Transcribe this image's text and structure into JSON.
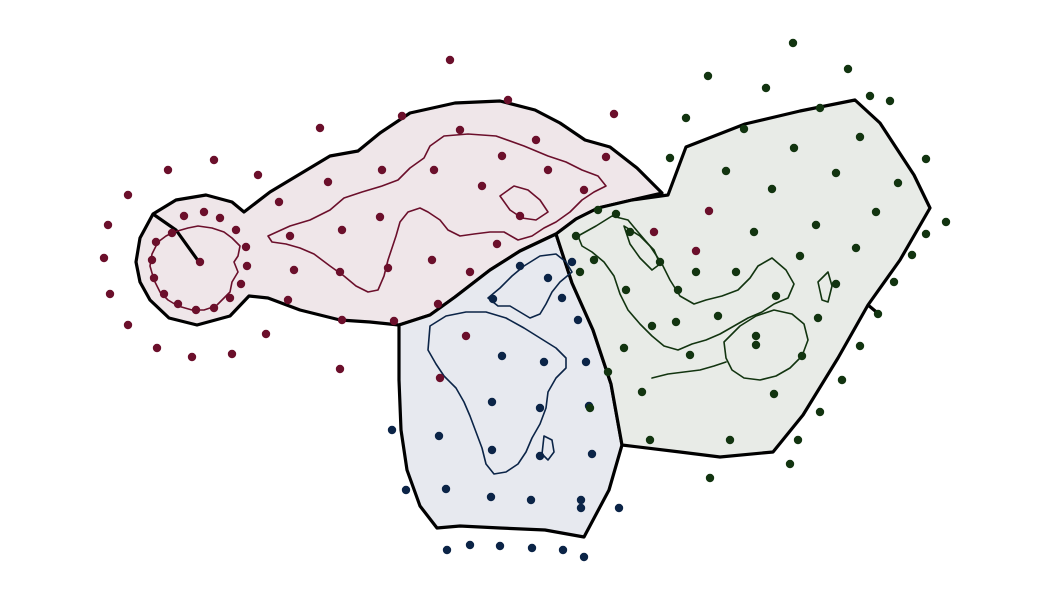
{
  "map": {
    "regions": [
      {
        "key": "americas-antarctica",
        "fill": "#efe6e9",
        "point_color": "#6b0f2b",
        "coast_color": "#6b0f2b"
      },
      {
        "key": "europe-africa",
        "fill": "#e7e9ef",
        "point_color": "#0b2447",
        "coast_color": "#0b2447"
      },
      {
        "key": "asia-oceania",
        "fill": "#e8ebe7",
        "point_color": "#123410",
        "coast_color": "#123410"
      }
    ]
  }
}
